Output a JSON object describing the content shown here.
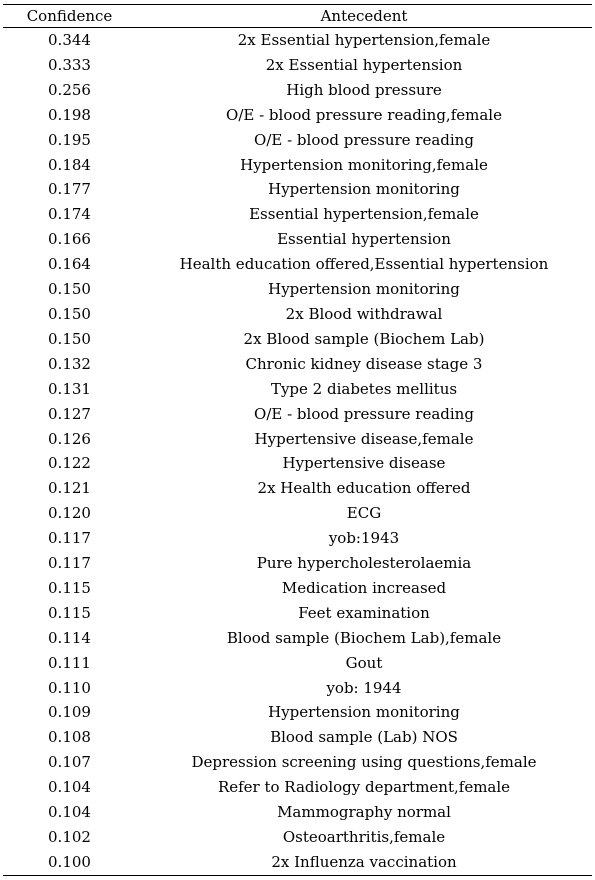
{
  "table": {
    "headers": [
      "Confidence",
      "Antecedent"
    ],
    "rows": [
      {
        "confidence": "0.344",
        "antecedent": "2x Essential hypertension,female"
      },
      {
        "confidence": "0.333",
        "antecedent": "2x Essential hypertension"
      },
      {
        "confidence": "0.256",
        "antecedent": "High blood pressure"
      },
      {
        "confidence": "0.198",
        "antecedent": "O/E - blood pressure reading,female"
      },
      {
        "confidence": "0.195",
        "antecedent": "O/E - blood pressure reading"
      },
      {
        "confidence": "0.184",
        "antecedent": "Hypertension monitoring,female"
      },
      {
        "confidence": "0.177",
        "antecedent": "Hypertension monitoring"
      },
      {
        "confidence": "0.174",
        "antecedent": "Essential hypertension,female"
      },
      {
        "confidence": "0.166",
        "antecedent": "Essential hypertension"
      },
      {
        "confidence": "0.164",
        "antecedent": "Health education offered,Essential hypertension"
      },
      {
        "confidence": "0.150",
        "antecedent": "Hypertension monitoring"
      },
      {
        "confidence": "0.150",
        "antecedent": "2x Blood withdrawal"
      },
      {
        "confidence": "0.150",
        "antecedent": "2x Blood sample (Biochem Lab)"
      },
      {
        "confidence": "0.132",
        "antecedent": "Chronic kidney disease stage 3"
      },
      {
        "confidence": "0.131",
        "antecedent": "Type 2 diabetes mellitus"
      },
      {
        "confidence": "0.127",
        "antecedent": "O/E - blood pressure reading"
      },
      {
        "confidence": "0.126",
        "antecedent": "Hypertensive disease,female"
      },
      {
        "confidence": "0.122",
        "antecedent": "Hypertensive disease"
      },
      {
        "confidence": "0.121",
        "antecedent": "2x Health education offered"
      },
      {
        "confidence": "0.120",
        "antecedent": "ECG"
      },
      {
        "confidence": "0.117",
        "antecedent": "yob:1943"
      },
      {
        "confidence": "0.117",
        "antecedent": "Pure hypercholesterolaemia"
      },
      {
        "confidence": "0.115",
        "antecedent": "Medication increased"
      },
      {
        "confidence": "0.115",
        "antecedent": "Feet examination"
      },
      {
        "confidence": "0.114",
        "antecedent": "Blood sample (Biochem Lab),female"
      },
      {
        "confidence": "0.111",
        "antecedent": "Gout"
      },
      {
        "confidence": "0.110",
        "antecedent": "yob: 1944"
      },
      {
        "confidence": "0.109",
        "antecedent": "Hypertension monitoring"
      },
      {
        "confidence": "0.108",
        "antecedent": "Blood sample (Lab) NOS"
      },
      {
        "confidence": "0.107",
        "antecedent": "Depression screening using questions,female"
      },
      {
        "confidence": "0.104",
        "antecedent": "Refer to Radiology department,female"
      },
      {
        "confidence": "0.104",
        "antecedent": "Mammography normal"
      },
      {
        "confidence": "0.102",
        "antecedent": "Osteoarthritis,female"
      },
      {
        "confidence": "0.100",
        "antecedent": "2x Influenza vaccination"
      }
    ]
  }
}
